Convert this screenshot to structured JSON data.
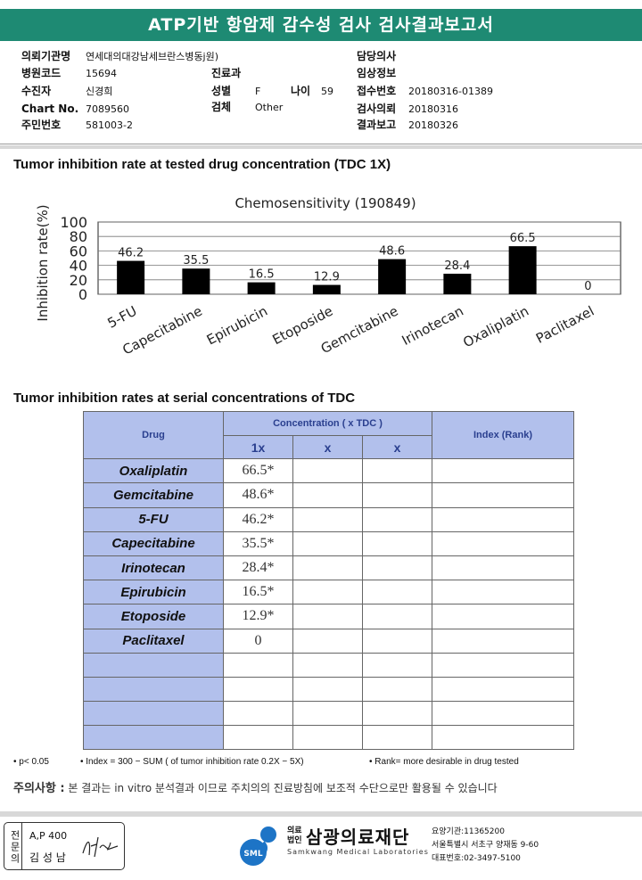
{
  "header": {
    "title": "ATP기반 항암제 감수성 검사 검사결과보고서"
  },
  "patient": {
    "institution_label": "의뢰기관명",
    "institution": "연세대의대강남세브란스병동j원)",
    "hospital_code_label": "병원코드",
    "hospital_code": "15694",
    "examinee_label": "수진자",
    "examinee": "신경희",
    "chart_no_label": "Chart No.",
    "chart_no": "7089560",
    "resident_no_label": "주민번호",
    "resident_no": "581003-2",
    "department_label": "진료과",
    "department": "",
    "sex_label": "성별",
    "sex": "F",
    "age_label": "나이",
    "age": "59",
    "specimen_label": "검체",
    "specimen": "Other",
    "doctor_label": "담당의사",
    "doctor": "",
    "clinical_info_label": "임상정보",
    "clinical_info": "",
    "accession_label": "접수번호",
    "accession": "20180316-01389",
    "request_date_label": "검사의뢰",
    "request_date": "20180316",
    "report_date_label": "결과보고",
    "report_date": "20180326"
  },
  "section1_title": "Tumor inhibition rate at tested drug concentration (TDC 1X)",
  "chart_data": {
    "type": "bar",
    "title": "Chemosensitivity (190849)",
    "ylabel": "Inhibition rate(%)",
    "xlabel": "",
    "ylim": [
      0,
      100
    ],
    "yticks": [
      0,
      20,
      40,
      60,
      80,
      100
    ],
    "grid": true,
    "categories": [
      "5-FU",
      "Capecitabine",
      "Epirubicin",
      "Etoposide",
      "Gemcitabine",
      "Irinotecan",
      "Oxaliplatin",
      "Paclitaxel"
    ],
    "values": [
      46.2,
      35.5,
      16.5,
      12.9,
      48.6,
      28.4,
      66.5,
      0
    ],
    "labels": [
      "46.2",
      "35.5",
      "16.5",
      "12.9",
      "48.6",
      "28.4",
      "66.5",
      "0"
    ],
    "bar_color": "#000000"
  },
  "section2_title": "Tumor inhibition rates at serial concentrations of TDC",
  "table": {
    "drug_header": "Drug",
    "conc_header": "Concentration ( x TDC )",
    "index_header": "Index (Rank)",
    "sub_headers": [
      "1x",
      "x",
      "x"
    ],
    "rows": [
      {
        "drug": "Oxaliplatin",
        "v1": "66.5*"
      },
      {
        "drug": "Gemcitabine",
        "v1": "48.6*"
      },
      {
        "drug": "5-FU",
        "v1": "46.2*"
      },
      {
        "drug": "Capecitabine",
        "v1": "35.5*"
      },
      {
        "drug": "Irinotecan",
        "v1": "28.4*"
      },
      {
        "drug": "Epirubicin",
        "v1": "16.5*"
      },
      {
        "drug": "Etoposide",
        "v1": "12.9*"
      },
      {
        "drug": "Paclitaxel",
        "v1": "0"
      }
    ],
    "empty_rows": 4
  },
  "footnotes": {
    "p": "• p< 0.05",
    "index": "• Index = 300 − SUM ( of tumor inhibition rate 0.2X  −  5X)",
    "rank": "• Rank= more desirable in drug tested"
  },
  "notice": {
    "label": "주의사항 :",
    "text": "본 결과는 in vitro 분석결과 이므로 주치의의 진료방침에 보조적 수단으로만 활용될 수 있습니다"
  },
  "signature": {
    "side_label": "전문의",
    "line1": "A,P 400",
    "line2": "김 성 남"
  },
  "lab": {
    "prefix_top": "의료",
    "prefix_bottom": "법인",
    "name": "삼광의료재단",
    "name_en": "Samkwang Medical Laboratories",
    "logo_text": "SML",
    "code": "요양기관:11365200",
    "address": "서울특별시 서초구 양재동 9-60",
    "phone": "대표번호:02-3497-5100"
  }
}
